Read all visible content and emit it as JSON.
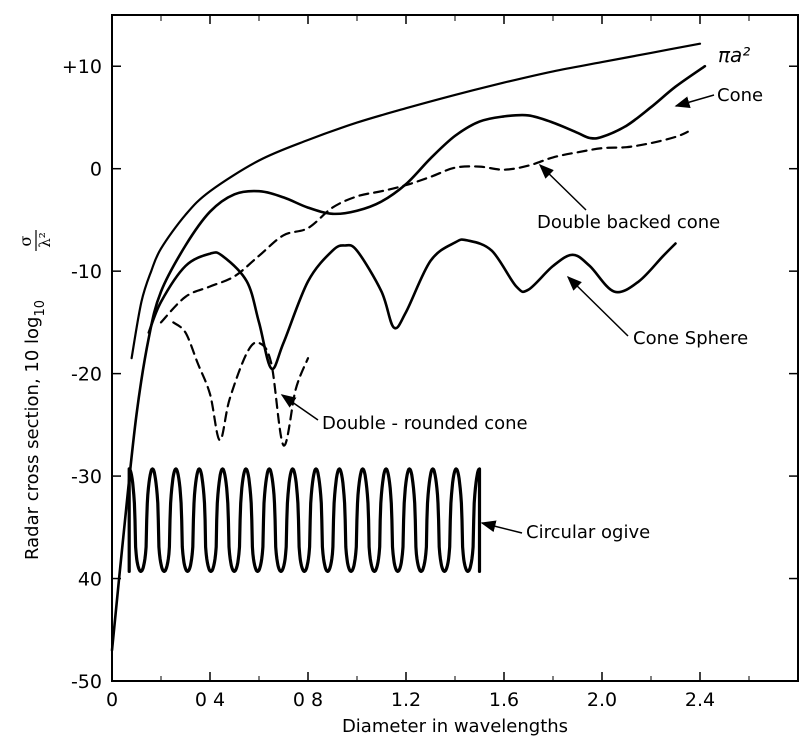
{
  "chart_data": {
    "type": "line",
    "xlabel": "Diameter in wavelengths",
    "ylabel_prefix": "Radar cross section, 10 log",
    "ylabel_sub": "10",
    "ylabel_frac_num": "σ",
    "ylabel_frac_den": "λ²",
    "xlim": [
      0,
      2.8
    ],
    "ylim": [
      -50,
      15
    ],
    "grid": false,
    "x_tick_labels": [
      {
        "value": 0,
        "label": "0"
      },
      {
        "value": 0.4,
        "label": "0 4"
      },
      {
        "value": 0.8,
        "label": "0 8"
      },
      {
        "value": 1.2,
        "label": "1.2"
      },
      {
        "value": 1.6,
        "label": "1.6"
      },
      {
        "value": 2.0,
        "label": "2.0"
      },
      {
        "value": 2.4,
        "label": "2.4"
      }
    ],
    "y_tick_labels": [
      {
        "value": 10,
        "label": "+10"
      },
      {
        "value": 0,
        "label": "0"
      },
      {
        "value": -10,
        "label": "-10"
      },
      {
        "value": -20,
        "label": "-20"
      },
      {
        "value": -30,
        "label": "-30"
      },
      {
        "value": -40,
        "label": "40"
      },
      {
        "value": -50,
        "label": "-50"
      }
    ],
    "series": [
      {
        "name": "πa²",
        "style": "solid-thin",
        "points": [
          [
            0.08,
            -18.5
          ],
          [
            0.12,
            -13
          ],
          [
            0.16,
            -10
          ],
          [
            0.2,
            -7.8
          ],
          [
            0.3,
            -4.5
          ],
          [
            0.4,
            -2.2
          ],
          [
            0.6,
            0.8
          ],
          [
            0.8,
            2.8
          ],
          [
            1.0,
            4.5
          ],
          [
            1.2,
            5.9
          ],
          [
            1.4,
            7.2
          ],
          [
            1.6,
            8.4
          ],
          [
            1.8,
            9.5
          ],
          [
            2.0,
            10.4
          ],
          [
            2.2,
            11.3
          ],
          [
            2.4,
            12.2
          ]
        ]
      },
      {
        "name": "Cone",
        "style": "solid",
        "points": [
          [
            0.0,
            -47
          ],
          [
            0.05,
            -35
          ],
          [
            0.1,
            -24
          ],
          [
            0.15,
            -16.5
          ],
          [
            0.2,
            -12
          ],
          [
            0.3,
            -7.5
          ],
          [
            0.4,
            -4.2
          ],
          [
            0.5,
            -2.5
          ],
          [
            0.6,
            -2.2
          ],
          [
            0.7,
            -2.8
          ],
          [
            0.8,
            -3.8
          ],
          [
            0.9,
            -4.4
          ],
          [
            1.0,
            -4.1
          ],
          [
            1.1,
            -3.2
          ],
          [
            1.2,
            -1.5
          ],
          [
            1.3,
            1.0
          ],
          [
            1.4,
            3.2
          ],
          [
            1.5,
            4.6
          ],
          [
            1.6,
            5.1
          ],
          [
            1.7,
            5.2
          ],
          [
            1.8,
            4.5
          ],
          [
            1.9,
            3.5
          ],
          [
            1.95,
            3.0
          ],
          [
            2.0,
            3.1
          ],
          [
            2.1,
            4.2
          ],
          [
            2.2,
            6.0
          ],
          [
            2.3,
            8.0
          ],
          [
            2.42,
            10.0
          ]
        ]
      },
      {
        "name": "Double backed cone",
        "style": "dashed",
        "points": [
          [
            0.2,
            -15
          ],
          [
            0.3,
            -12.5
          ],
          [
            0.4,
            -11.5
          ],
          [
            0.5,
            -10.5
          ],
          [
            0.6,
            -8.5
          ],
          [
            0.7,
            -6.5
          ],
          [
            0.8,
            -5.8
          ],
          [
            0.9,
            -3.8
          ],
          [
            1.0,
            -2.7
          ],
          [
            1.1,
            -2.2
          ],
          [
            1.2,
            -1.6
          ],
          [
            1.3,
            -0.8
          ],
          [
            1.4,
            0.1
          ],
          [
            1.5,
            0.2
          ],
          [
            1.6,
            -0.1
          ],
          [
            1.7,
            0.3
          ],
          [
            1.8,
            1.1
          ],
          [
            1.9,
            1.6
          ],
          [
            2.0,
            2.0
          ],
          [
            2.1,
            2.1
          ],
          [
            2.2,
            2.5
          ],
          [
            2.3,
            3.1
          ],
          [
            2.35,
            3.6
          ]
        ]
      },
      {
        "name": "Cone Sphere",
        "style": "solid",
        "points": [
          [
            0.15,
            -16
          ],
          [
            0.2,
            -13
          ],
          [
            0.3,
            -9.5
          ],
          [
            0.4,
            -8.3
          ],
          [
            0.45,
            -8.5
          ],
          [
            0.55,
            -11
          ],
          [
            0.6,
            -15
          ],
          [
            0.65,
            -19.5
          ],
          [
            0.7,
            -17
          ],
          [
            0.8,
            -11
          ],
          [
            0.9,
            -8
          ],
          [
            0.95,
            -7.5
          ],
          [
            1.0,
            -8
          ],
          [
            1.1,
            -12
          ],
          [
            1.15,
            -15.5
          ],
          [
            1.2,
            -14
          ],
          [
            1.3,
            -9
          ],
          [
            1.4,
            -7.2
          ],
          [
            1.45,
            -7
          ],
          [
            1.55,
            -8
          ],
          [
            1.65,
            -11.5
          ],
          [
            1.7,
            -11.8
          ],
          [
            1.8,
            -9.5
          ],
          [
            1.88,
            -8.4
          ],
          [
            1.95,
            -9.5
          ],
          [
            2.05,
            -12
          ],
          [
            2.15,
            -11
          ],
          [
            2.25,
            -8.5
          ],
          [
            2.3,
            -7.3
          ]
        ]
      },
      {
        "name": "Double - rounded cone",
        "style": "dashed",
        "points": [
          [
            0.25,
            -15
          ],
          [
            0.3,
            -16
          ],
          [
            0.35,
            -19
          ],
          [
            0.4,
            -22
          ],
          [
            0.44,
            -26.5
          ],
          [
            0.48,
            -22.5
          ],
          [
            0.55,
            -18
          ],
          [
            0.6,
            -17
          ],
          [
            0.65,
            -19
          ],
          [
            0.7,
            -27
          ],
          [
            0.75,
            -21.5
          ],
          [
            0.8,
            -18.5
          ]
        ]
      },
      {
        "name": "Circular ogive",
        "style": "solid-bold",
        "x_start": 0.07,
        "x_end": 1.5,
        "y_max": -29.3,
        "y_min": -39.3,
        "peaks": 15
      }
    ],
    "annotations": [
      {
        "text": "πa²",
        "arrow": false
      },
      {
        "text": "Cone",
        "arrow": true
      },
      {
        "text": "Double backed cone",
        "arrow": true
      },
      {
        "text": "Cone Sphere",
        "arrow": true
      },
      {
        "text": "Double - rounded cone",
        "arrow": true
      },
      {
        "text": "Circular ogive",
        "arrow": true
      }
    ]
  }
}
